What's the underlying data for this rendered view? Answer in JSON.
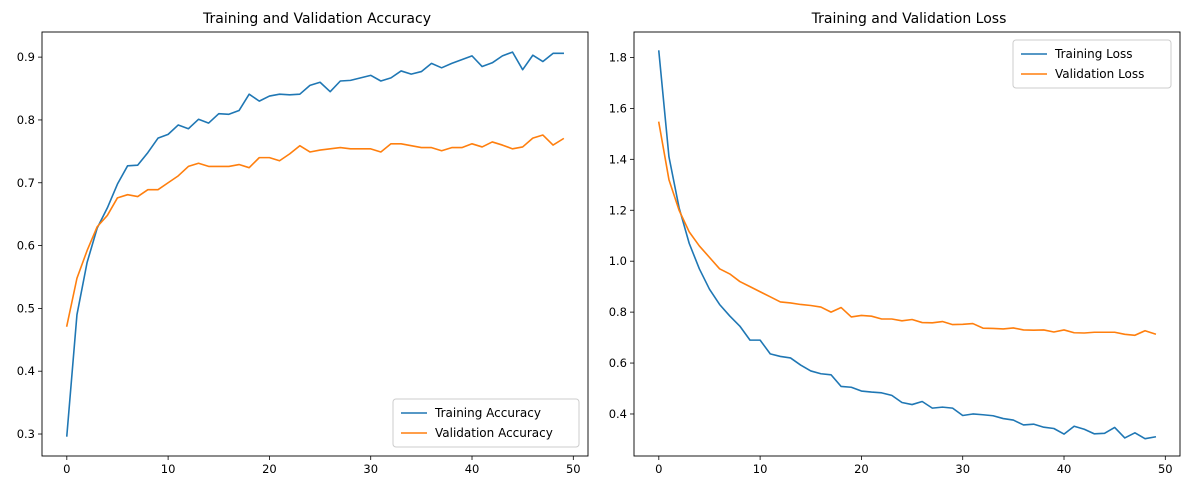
{
  "chart_data": [
    {
      "type": "line",
      "title": "Training and Validation Accuracy",
      "xlabel": "",
      "ylabel": "",
      "xlim": [
        -2.45,
        51.45
      ],
      "ylim": [
        0.265,
        0.94
      ],
      "xticks": [
        0,
        10,
        20,
        30,
        40,
        50
      ],
      "xtick_labels": [
        "0",
        "10",
        "20",
        "30",
        "40",
        "50"
      ],
      "yticks": [
        0.3,
        0.4,
        0.5,
        0.6,
        0.7,
        0.8,
        0.9
      ],
      "ytick_labels": [
        "0.3",
        "0.4",
        "0.5",
        "0.6",
        "0.7",
        "0.8",
        "0.9"
      ],
      "grid": false,
      "legend_position": "bottom-right",
      "x": [
        0,
        1,
        2,
        3,
        4,
        5,
        6,
        7,
        8,
        9,
        10,
        11,
        12,
        13,
        14,
        15,
        16,
        17,
        18,
        19,
        20,
        21,
        22,
        23,
        24,
        25,
        26,
        27,
        28,
        29,
        30,
        31,
        32,
        33,
        34,
        35,
        36,
        37,
        38,
        39,
        40,
        41,
        42,
        43,
        44,
        45,
        46,
        47,
        48,
        49
      ],
      "series": [
        {
          "name": "Training Accuracy",
          "color": "#1f77b4",
          "values": [
            0.297,
            0.49,
            0.573,
            0.628,
            0.66,
            0.698,
            0.727,
            0.728,
            0.748,
            0.771,
            0.777,
            0.792,
            0.786,
            0.801,
            0.795,
            0.81,
            0.809,
            0.815,
            0.841,
            0.83,
            0.838,
            0.841,
            0.84,
            0.841,
            0.855,
            0.86,
            0.845,
            0.862,
            0.863,
            0.867,
            0.871,
            0.862,
            0.867,
            0.878,
            0.873,
            0.877,
            0.89,
            0.883,
            0.89,
            0.896,
            0.902,
            0.885,
            0.891,
            0.902,
            0.908,
            0.88,
            0.903,
            0.893,
            0.906,
            0.906
          ]
        },
        {
          "name": "Validation Accuracy",
          "color": "#ff7f0e",
          "values": [
            0.472,
            0.548,
            0.592,
            0.63,
            0.648,
            0.676,
            0.681,
            0.678,
            0.689,
            0.689,
            0.7,
            0.711,
            0.726,
            0.731,
            0.726,
            0.726,
            0.726,
            0.729,
            0.724,
            0.74,
            0.74,
            0.735,
            0.746,
            0.759,
            0.749,
            0.752,
            0.754,
            0.756,
            0.754,
            0.754,
            0.754,
            0.749,
            0.762,
            0.762,
            0.759,
            0.756,
            0.756,
            0.751,
            0.756,
            0.756,
            0.762,
            0.757,
            0.765,
            0.76,
            0.754,
            0.757,
            0.771,
            0.776,
            0.76,
            0.77
          ]
        }
      ]
    },
    {
      "type": "line",
      "title": "Training and Validation Loss",
      "xlabel": "",
      "ylabel": "",
      "xlim": [
        -2.45,
        51.45
      ],
      "ylim": [
        0.235,
        1.9
      ],
      "xticks": [
        0,
        10,
        20,
        30,
        40,
        50
      ],
      "xtick_labels": [
        "0",
        "10",
        "20",
        "30",
        "40",
        "50"
      ],
      "yticks": [
        0.4,
        0.6,
        0.8,
        1.0,
        1.2,
        1.4,
        1.6,
        1.8
      ],
      "ytick_labels": [
        "0.4",
        "0.6",
        "0.8",
        "1.0",
        "1.2",
        "1.4",
        "1.6",
        "1.8"
      ],
      "grid": false,
      "legend_position": "top-right",
      "x": [
        0,
        1,
        2,
        3,
        4,
        5,
        6,
        7,
        8,
        9,
        10,
        11,
        12,
        13,
        14,
        15,
        16,
        17,
        18,
        19,
        20,
        21,
        22,
        23,
        24,
        25,
        26,
        27,
        28,
        29,
        30,
        31,
        32,
        33,
        34,
        35,
        36,
        37,
        38,
        39,
        40,
        41,
        42,
        43,
        44,
        45,
        46,
        47,
        48,
        49
      ],
      "series": [
        {
          "name": "Training Loss",
          "color": "#1f77b4",
          "values": [
            1.825,
            1.41,
            1.21,
            1.07,
            0.97,
            0.89,
            0.83,
            0.785,
            0.745,
            0.69,
            0.69,
            0.636,
            0.626,
            0.62,
            0.592,
            0.569,
            0.558,
            0.554,
            0.508,
            0.505,
            0.49,
            0.486,
            0.483,
            0.473,
            0.445,
            0.437,
            0.449,
            0.423,
            0.427,
            0.423,
            0.394,
            0.4,
            0.397,
            0.393,
            0.382,
            0.376,
            0.357,
            0.36,
            0.348,
            0.343,
            0.321,
            0.352,
            0.34,
            0.322,
            0.324,
            0.347,
            0.306,
            0.326,
            0.303,
            0.31
          ]
        },
        {
          "name": "Validation Loss",
          "color": "#ff7f0e",
          "values": [
            1.545,
            1.32,
            1.2,
            1.115,
            1.06,
            1.015,
            0.97,
            0.95,
            0.92,
            0.9,
            0.88,
            0.86,
            0.84,
            0.836,
            0.83,
            0.826,
            0.82,
            0.8,
            0.818,
            0.781,
            0.787,
            0.784,
            0.773,
            0.773,
            0.766,
            0.771,
            0.759,
            0.758,
            0.763,
            0.751,
            0.752,
            0.755,
            0.737,
            0.736,
            0.734,
            0.738,
            0.73,
            0.729,
            0.73,
            0.722,
            0.73,
            0.719,
            0.718,
            0.721,
            0.721,
            0.721,
            0.713,
            0.709,
            0.727,
            0.714
          ]
        }
      ]
    }
  ]
}
